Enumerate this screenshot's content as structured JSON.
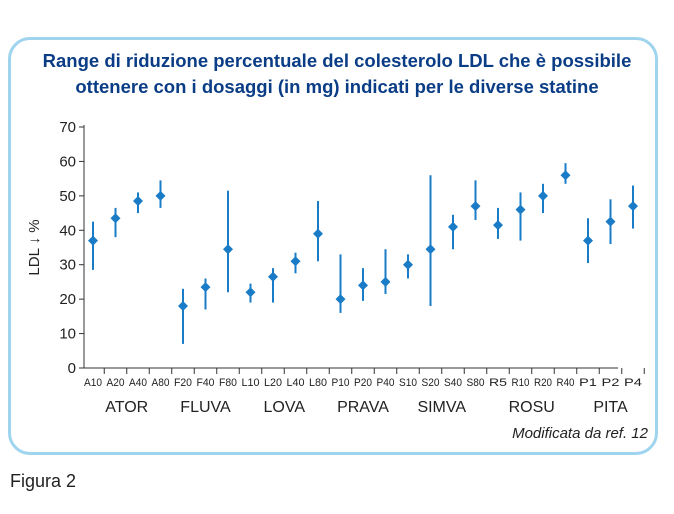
{
  "title_line1": "Range di riduzione percentuale del colesterolo LDL che è possibile",
  "title_line2": "ottenere con i dosaggi (in mg) indicati per le diverse statine",
  "source_note": "Modificata da ref. 12",
  "figure_label": "Figura 2",
  "colors": {
    "marker": "#1a7cc7",
    "frame": "#9fd4ef",
    "title": "#0b3d86",
    "axis": "#333333"
  },
  "chart_data": {
    "type": "scatter",
    "ylabel": "LDL ↓ %",
    "ylim": [
      0,
      70
    ],
    "yticks": [
      0,
      10,
      20,
      30,
      40,
      50,
      60,
      70
    ],
    "grid": false,
    "categories": [
      "A10",
      "A20",
      "A40",
      "A80",
      "F20",
      "F40",
      "F80",
      "L10",
      "L20",
      "L40",
      "L80",
      "P10",
      "P20",
      "P40",
      "S10",
      "S20",
      "S40",
      "S80",
      "R5",
      "R10",
      "R20",
      "R40",
      "P1",
      "P2",
      "P4"
    ],
    "values": [
      37,
      43.5,
      48.5,
      50,
      18,
      23.5,
      34.5,
      22,
      26.5,
      31,
      39,
      20,
      24,
      25,
      30,
      34.5,
      41,
      47,
      41.5,
      46,
      50,
      56,
      37,
      42.5,
      47
    ],
    "low": [
      28.5,
      38,
      45,
      46.5,
      7,
      17,
      22,
      19,
      19,
      27.5,
      31,
      16,
      19.5,
      21.5,
      26,
      18,
      34.5,
      43,
      37.5,
      37,
      45,
      53.5,
      30.5,
      36,
      40.5
    ],
    "high": [
      42.5,
      46.5,
      51,
      54.5,
      23,
      26,
      51.5,
      24.5,
      29,
      33.5,
      48.5,
      33,
      29,
      34.5,
      33,
      56,
      44.5,
      54.5,
      46.5,
      51,
      53.5,
      59.5,
      43.5,
      49,
      53
    ],
    "groups": [
      {
        "name": "ATOR",
        "start": 0,
        "end": 3
      },
      {
        "name": "FLUVA",
        "start": 4,
        "end": 6
      },
      {
        "name": "LOVA",
        "start": 7,
        "end": 10
      },
      {
        "name": "PRAVA",
        "start": 11,
        "end": 13
      },
      {
        "name": "SIMVA",
        "start": 14,
        "end": 17
      },
      {
        "name": "ROSU",
        "start": 18,
        "end": 21
      },
      {
        "name": "PITA",
        "start": 22,
        "end": 24
      }
    ]
  }
}
